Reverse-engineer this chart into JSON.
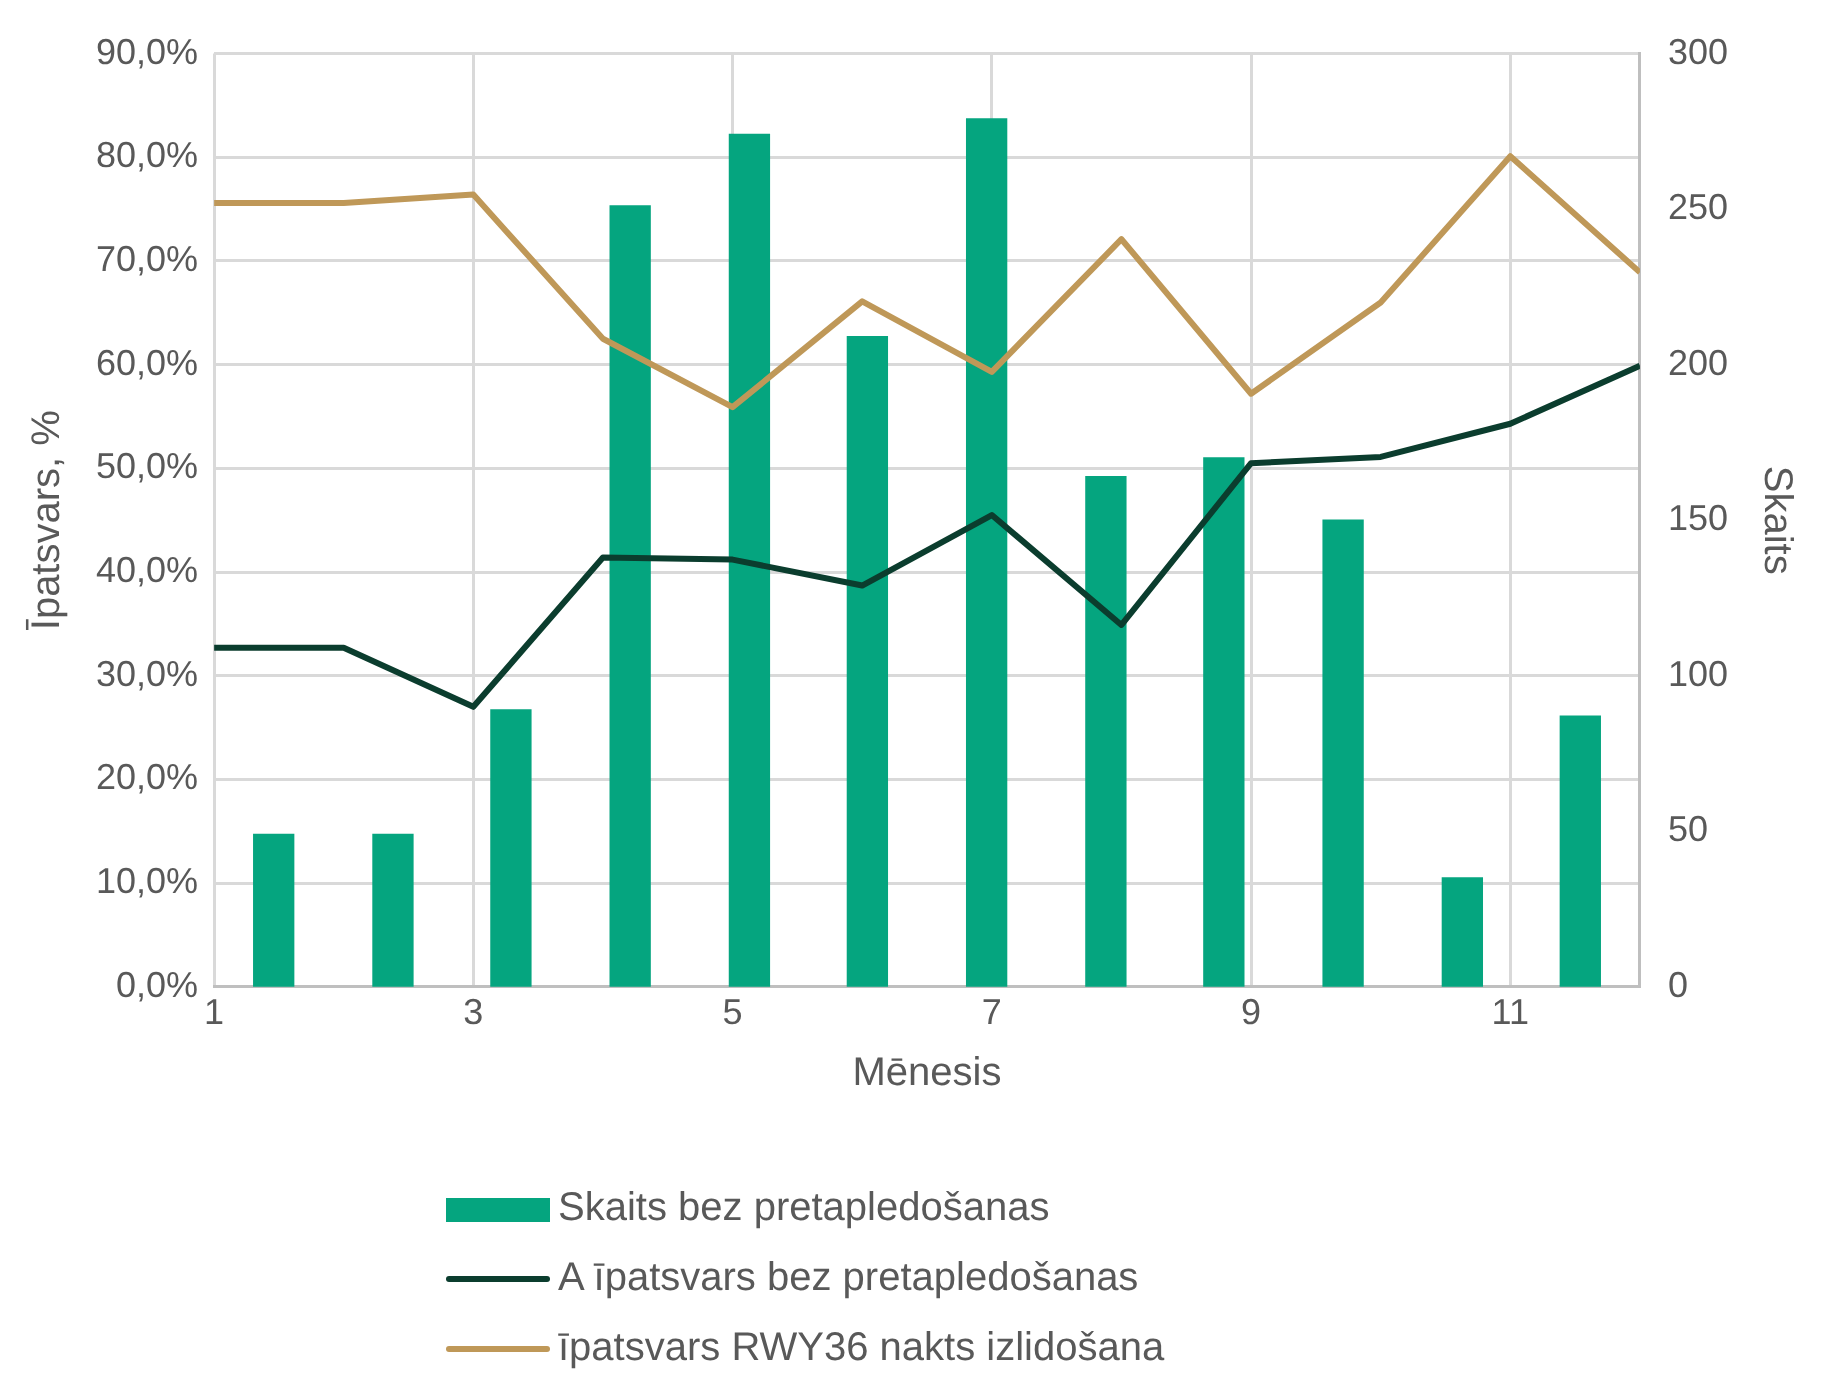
{
  "chart_data": {
    "type": "bar",
    "xlabel": "Mēnesis",
    "ylabel": "Īpatsvars, %",
    "y2label": "Skaits",
    "xlim": [
      1,
      12
    ],
    "xticks": [
      1,
      3,
      5,
      7,
      9,
      11
    ],
    "ylim": [
      0,
      90
    ],
    "yticks": [
      {
        "value": 0,
        "label": "0,0%"
      },
      {
        "value": 10,
        "label": "10,0%"
      },
      {
        "value": 20,
        "label": "20,0%"
      },
      {
        "value": 30,
        "label": "30,0%"
      },
      {
        "value": 40,
        "label": "40,0%"
      },
      {
        "value": 50,
        "label": "50,0%"
      },
      {
        "value": 60,
        "label": "60,0%"
      },
      {
        "value": 70,
        "label": "70,0%"
      },
      {
        "value": 80,
        "label": "80,0%"
      },
      {
        "value": 90,
        "label": "90,0%"
      }
    ],
    "y2lim": [
      0,
      300
    ],
    "y2ticks": [
      0,
      50,
      100,
      150,
      200,
      250,
      300
    ],
    "grid": true,
    "legend": "bottom",
    "series": [
      {
        "name": "Skaits bez pretapledošanas",
        "axis": "y2",
        "color": "#05a57f",
        "x": [
          1.46,
          2.38,
          3.29,
          4.21,
          5.13,
          6.04,
          6.96,
          7.88,
          8.79,
          9.71,
          10.63,
          11.54
        ],
        "values": [
          49,
          49,
          89,
          251,
          274,
          209,
          279,
          164,
          170,
          150,
          35,
          87
        ]
      },
      {
        "name": "A īpatsvars bez pretapledošanas",
        "type": "line",
        "color": "#0b3d2e",
        "x": [
          1,
          2,
          3,
          4,
          5,
          6,
          7,
          8,
          9,
          10,
          11,
          12
        ],
        "values": [
          32.7,
          32.7,
          27.0,
          41.4,
          41.2,
          38.7,
          45.5,
          34.9,
          50.5,
          51.1,
          54.3,
          59.9
        ]
      },
      {
        "name": "īpatsvars RWY36 nakts izlidošana",
        "type": "line",
        "color": "#bf9858",
        "x": [
          1,
          2,
          3,
          4,
          5,
          6,
          7,
          8,
          9,
          10,
          11,
          12
        ],
        "values": [
          75.6,
          75.6,
          76.4,
          62.5,
          55.9,
          66.1,
          59.3,
          72.1,
          57.2,
          66.0,
          80.1,
          68.9
        ]
      }
    ]
  }
}
